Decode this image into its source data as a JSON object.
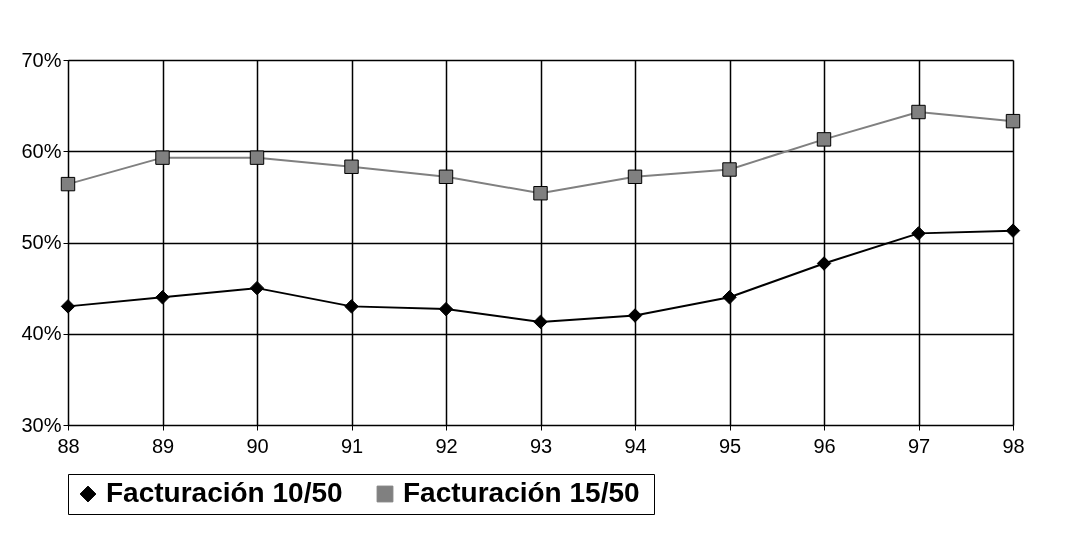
{
  "chart_data": {
    "type": "line",
    "categories": [
      "88",
      "89",
      "90",
      "91",
      "92",
      "93",
      "94",
      "95",
      "96",
      "97",
      "98"
    ],
    "series": [
      {
        "name": "Facturación  10/50",
        "color": "#000000",
        "marker": "diamond",
        "values": [
          43,
          44,
          45,
          43,
          42.7,
          41.3,
          42,
          44,
          47.7,
          51,
          51.3
        ]
      },
      {
        "name": "Facturación  15/50",
        "color": "#808080",
        "marker": "square",
        "values": [
          56.4,
          59.3,
          59.3,
          58.3,
          57.2,
          55.4,
          57.2,
          58,
          61.3,
          64.3,
          63.3
        ]
      }
    ],
    "ylim": [
      30,
      70
    ],
    "yticks": [
      {
        "value": 30,
        "label": "30%"
      },
      {
        "value": 40,
        "label": "40%"
      },
      {
        "value": 50,
        "label": "50%"
      },
      {
        "value": 60,
        "label": "60%"
      },
      {
        "value": 70,
        "label": "70%"
      }
    ],
    "grid": true,
    "legend": "bottom",
    "line_style": "solid"
  }
}
